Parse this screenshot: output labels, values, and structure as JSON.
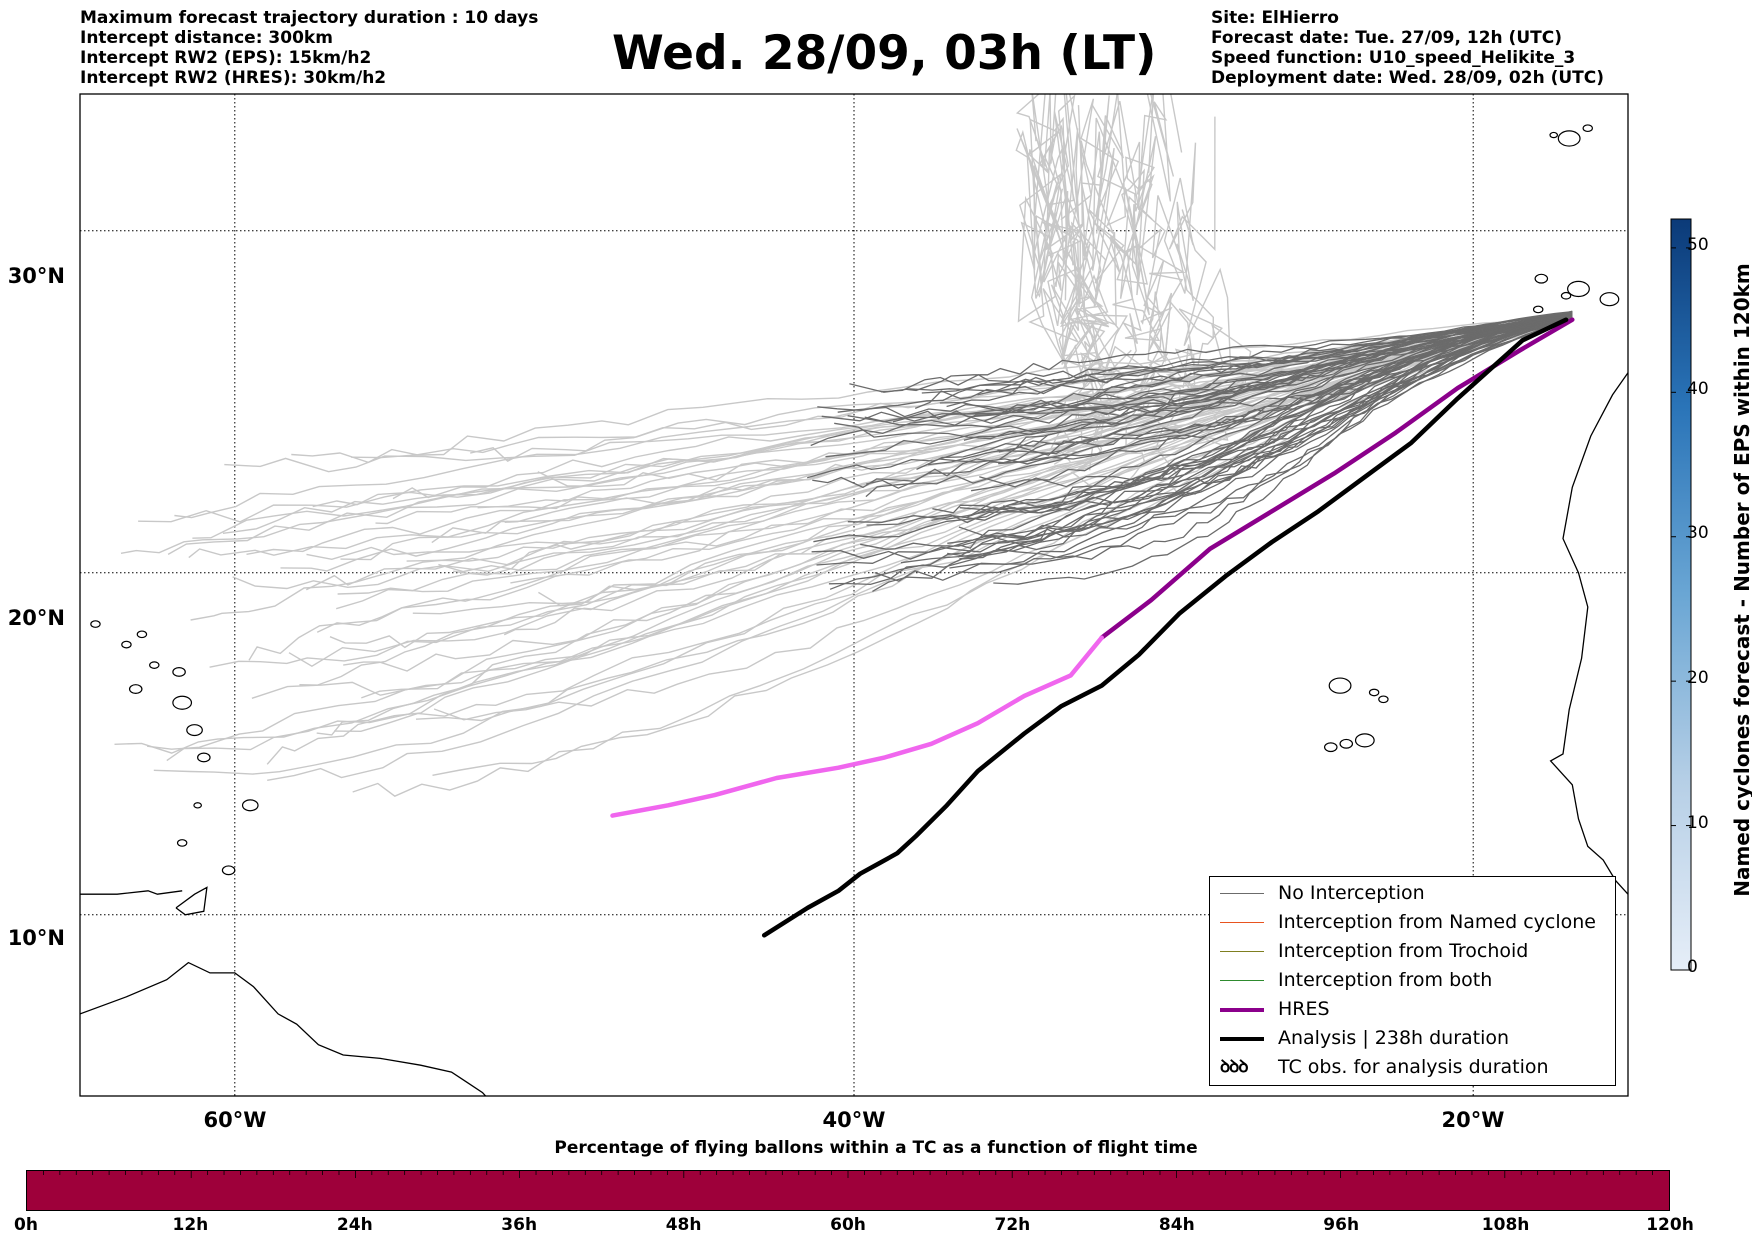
{
  "header": {
    "info_left": [
      "Maximum forecast trajectory duration : 10 days",
      "Intercept distance: 300km",
      "Intercept RW2 (EPS):  15km/h2",
      "Intercept RW2 (HRES): 30km/h2"
    ],
    "title": "Wed. 28/09, 03h (LT)",
    "info_right": [
      "Site: ElHierro",
      "Forecast date: Tue. 27/09, 12h (UTC)",
      "Speed function: U10_speed_Helikite_3",
      "Deployment date: Wed. 28/09, 02h (UTC)"
    ]
  },
  "map": {
    "lon_range": [
      -65,
      -15
    ],
    "lat_range": [
      4.7,
      34
    ],
    "lat_labels": [
      "30°N",
      "20°N",
      "10°N"
    ],
    "lon_labels": [
      "60°W",
      "40°W",
      "20°W"
    ],
    "colors": {
      "no_interception": "#6b6b6b",
      "ens_light": "#c8c8c8",
      "hres_light": "#f066ee",
      "hres_dark": "#8b008b",
      "analysis": "#000000",
      "coast": "#000000"
    },
    "site": {
      "lon": -16.0,
      "lat": 27.5
    },
    "hres_track": [
      [
        -16.8,
        27.4
      ],
      [
        -18.5,
        26.5
      ],
      [
        -20.5,
        25.4
      ],
      [
        -22.5,
        24.1
      ],
      [
        -24.5,
        22.9
      ],
      [
        -26.5,
        21.8
      ],
      [
        -28.5,
        20.7
      ],
      [
        -30.4,
        19.2
      ],
      [
        -32,
        18.1
      ],
      [
        -33.0,
        17.0
      ],
      [
        -34.5,
        16.4
      ],
      [
        -36,
        15.6
      ],
      [
        -37.5,
        15.0
      ],
      [
        -39,
        14.6
      ],
      [
        -40.5,
        14.3
      ],
      [
        -42.5,
        14.0
      ],
      [
        -44.5,
        13.5
      ],
      [
        -46,
        13.2
      ],
      [
        -47.8,
        12.9
      ]
    ],
    "hres_split_index": 8,
    "analysis_track": [
      [
        -17.0,
        27.4
      ],
      [
        -18.4,
        26.8
      ],
      [
        -20.5,
        25.1
      ],
      [
        -22.0,
        23.8
      ],
      [
        -23.5,
        22.8
      ],
      [
        -25.0,
        21.8
      ],
      [
        -26.5,
        20.9
      ],
      [
        -28.0,
        19.9
      ],
      [
        -29.5,
        18.8
      ],
      [
        -30.8,
        17.6
      ],
      [
        -32.0,
        16.7
      ],
      [
        -33.3,
        16.1
      ],
      [
        -34.5,
        15.3
      ],
      [
        -36,
        14.2
      ],
      [
        -37.0,
        13.2
      ],
      [
        -38.0,
        12.3
      ],
      [
        -38.6,
        11.8
      ],
      [
        -39.2,
        11.5
      ],
      [
        -39.8,
        11.2
      ],
      [
        -40.5,
        10.7
      ],
      [
        -41.5,
        10.2
      ],
      [
        -42.9,
        9.4
      ]
    ],
    "eps_count_label": "Named cyclones forecast - Number of EPS within 120km",
    "eps_ticks": [
      "0",
      "10",
      "20",
      "30",
      "40",
      "50"
    ],
    "eps_max": 52
  },
  "legend": [
    {
      "label": "No Interception",
      "color": "#6b6b6b",
      "width": 1.2,
      "kind": "line"
    },
    {
      "label": "Interception from Named cyclone",
      "color": "#e8531f",
      "width": 1.2,
      "kind": "line"
    },
    {
      "label": "Interception from Trochoid",
      "color": "#7f7f20",
      "width": 1.2,
      "kind": "line"
    },
    {
      "label": "Interception from both",
      "color": "#2e8b2e",
      "width": 1.2,
      "kind": "line"
    },
    {
      "label": "HRES",
      "color": "#8b008b",
      "width": 4,
      "kind": "line"
    },
    {
      "label": "Analysis | 238h duration",
      "color": "#000000",
      "width": 4,
      "kind": "line"
    },
    {
      "label": "TC obs. for analysis duration",
      "symbol": "ꝺꝺꝺ",
      "kind": "symbol"
    }
  ],
  "bottom": {
    "title": "Percentage of flying ballons within a TC as a function of flight time",
    "hours": [
      "0h",
      "12h",
      "24h",
      "36h",
      "48h",
      "60h",
      "72h",
      "84h",
      "96h",
      "108h",
      "120h"
    ],
    "bar_color": "#9e003a"
  }
}
